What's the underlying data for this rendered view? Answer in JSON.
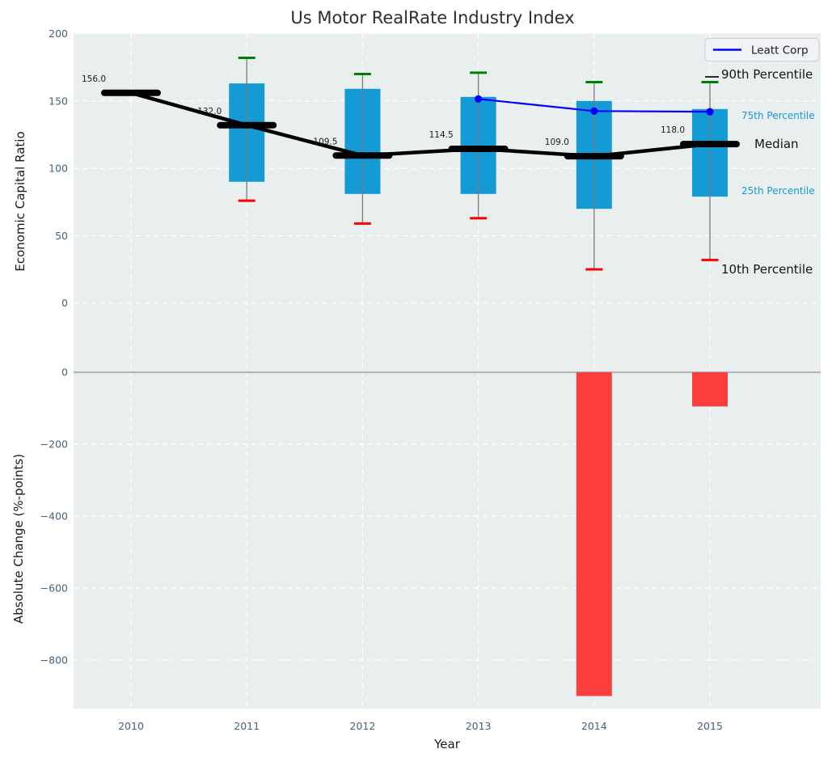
{
  "figure": {
    "title": "Us Motor RealRate Industry Index",
    "xlabel": "Year",
    "top_ylabel": "Economic Capital Ratio",
    "bottom_ylabel": "Absolute Change (%-points)"
  },
  "legend": {
    "label": "Leatt Corp"
  },
  "annotations": {
    "p90": "90th Percentile",
    "p75": "75th Percentile",
    "median": "Median",
    "p25": "25th Percentile",
    "p10": "10th Percentile"
  },
  "colors": {
    "box": "#149bd6",
    "whisker": "#7a7a7a",
    "cap_high": "#008000",
    "cap_low": "#ff0000",
    "median": "#000000",
    "company_line": "#0000ff",
    "bar_negative": "#fc3d3d",
    "plot_background": "#e9eeef",
    "grid": "#ffffff",
    "zero_line": "#b0b0b0",
    "tick_label": "#47617a",
    "percentile_label_blue": "#149bd6",
    "legend_background": "#f1f2f6",
    "legend_border": "#ccccd4"
  },
  "chart_data": [
    {
      "type": "boxplot",
      "panel": "top",
      "title": "Us Motor RealRate Industry Index",
      "ylabel": "Economic Capital Ratio",
      "categories": [
        2010,
        2011,
        2012,
        2013,
        2014,
        2015
      ],
      "yticks": [
        200,
        150,
        100,
        50,
        0
      ],
      "ytick_labels": [
        "200",
        "150",
        "100",
        "50",
        "0"
      ],
      "ylim": [
        -50,
        200
      ],
      "grid": true,
      "legend_position": "upper right",
      "series": [
        {
          "name": "10th Percentile",
          "values": [
            null,
            76,
            59,
            63,
            25,
            32
          ]
        },
        {
          "name": "25th Percentile",
          "values": [
            null,
            90,
            81,
            81,
            70,
            79
          ]
        },
        {
          "name": "Median",
          "values": [
            156,
            132,
            109.5,
            114.5,
            109,
            118
          ]
        },
        {
          "name": "75th Percentile",
          "values": [
            null,
            163,
            159,
            153,
            150,
            144
          ]
        },
        {
          "name": "90th Percentile",
          "values": [
            null,
            182,
            170,
            171,
            164,
            164
          ]
        },
        {
          "name": "Leatt Corp",
          "values": [
            null,
            null,
            null,
            151.5,
            142.5,
            142
          ]
        }
      ],
      "median_labels": [
        "156.0",
        "132.0",
        "109.5",
        "114.5",
        "109.0",
        "118.0"
      ]
    },
    {
      "type": "bar",
      "panel": "bottom",
      "ylabel": "Absolute Change (%-points)",
      "xlabel": "Year",
      "categories": [
        2010,
        2011,
        2012,
        2013,
        2014,
        2015
      ],
      "xtick_labels": [
        "2010",
        "2011",
        "2012",
        "2013",
        "2014",
        "2015"
      ],
      "values": [
        null,
        null,
        null,
        null,
        -900,
        -95
      ],
      "yticks": [
        0,
        -200,
        -400,
        -600,
        -800
      ],
      "ytick_labels": [
        "0",
        "−200",
        "−400",
        "−600",
        "−800"
      ],
      "ylim": [
        -935,
        5
      ],
      "grid": true
    }
  ]
}
